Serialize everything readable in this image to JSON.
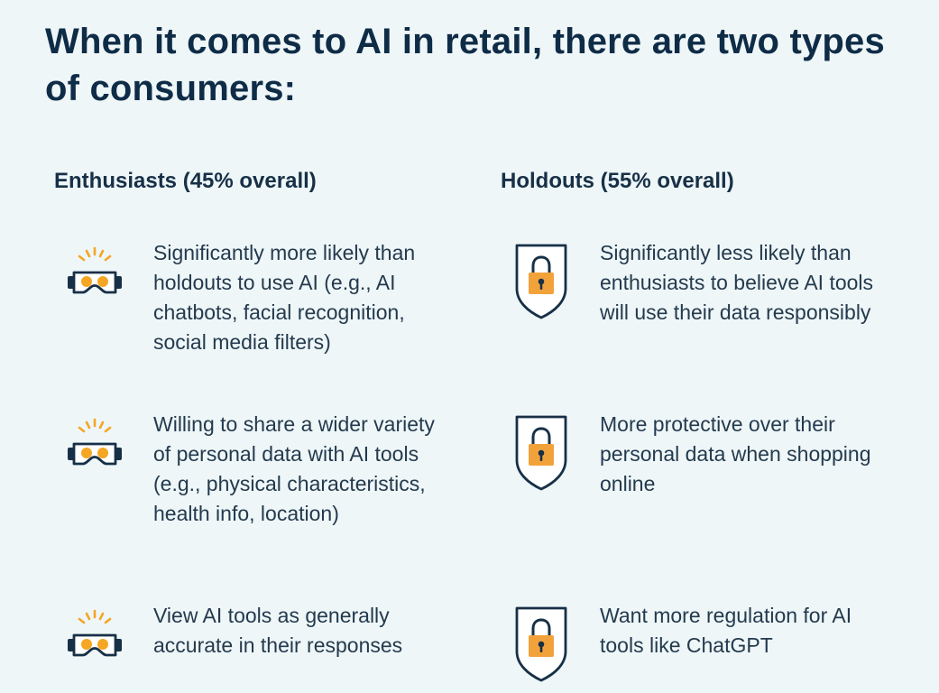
{
  "colors": {
    "background": "#eef6f8",
    "navy": "#173047",
    "orange": "#f5a623",
    "lock_orange": "#f2a23a"
  },
  "title": "When it comes to AI in retail, there are two types of consumers:",
  "columns": {
    "enthusiasts": {
      "heading": "Enthusiasts (45% overall)",
      "icon": "vr-headset-icon",
      "items": [
        {
          "text": "Significantly more likely than holdouts to use AI (e.g., AI chatbots, facial recognition, social media filters)"
        },
        {
          "text": "Willing to share a wider variety of personal data with AI tools (e.g., physical characteristics, health info, location)"
        },
        {
          "text": "View AI tools as generally accurate in their responses"
        }
      ]
    },
    "holdouts": {
      "heading": "Holdouts (55% overall)",
      "icon": "shield-lock-icon",
      "items": [
        {
          "text": "Significantly less likely than enthusiasts to believe AI tools will use their data responsibly"
        },
        {
          "text": "More protective over their personal data when shopping online"
        },
        {
          "text": "Want more regulation for AI tools like ChatGPT"
        }
      ]
    }
  }
}
